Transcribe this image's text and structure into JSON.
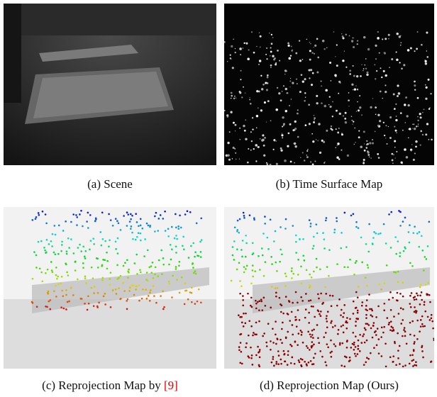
{
  "figure": {
    "panels": [
      {
        "label": "(a)",
        "caption": "Scene"
      },
      {
        "label": "(b)",
        "caption": "Time Surface Map"
      },
      {
        "label": "(c)",
        "caption": "Reprojection Map by",
        "citation": "[9]"
      },
      {
        "label": "(d)",
        "caption": "Reprojection Map (Ours)"
      }
    ]
  }
}
